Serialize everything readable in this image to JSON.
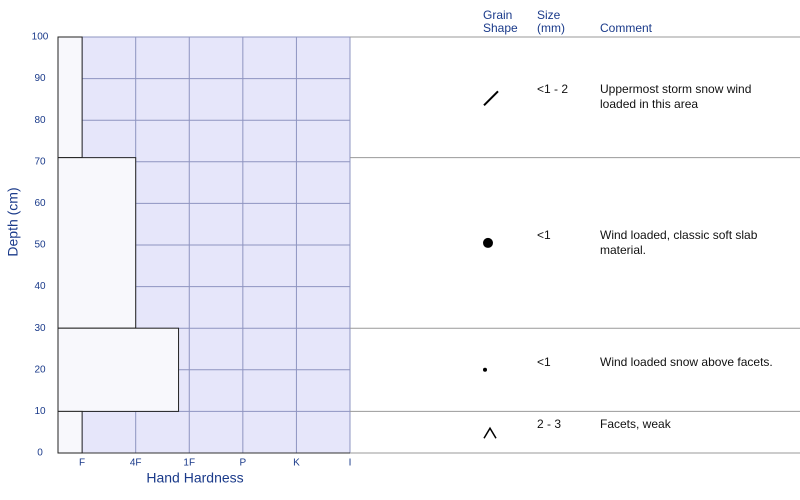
{
  "chart_data": {
    "type": "snow-profile",
    "ylabel": "Depth (cm)",
    "xlabel": "Hand Hardness",
    "ylim": [
      0,
      100
    ],
    "yticks": [
      0,
      10,
      20,
      30,
      40,
      50,
      60,
      70,
      80,
      90,
      100
    ],
    "xlim": [
      0.55,
      6
    ],
    "xticks": [
      {
        "value": 1,
        "label": "F"
      },
      {
        "value": 2,
        "label": "4F"
      },
      {
        "value": 3,
        "label": "1F"
      },
      {
        "value": 4,
        "label": "P"
      },
      {
        "value": 5,
        "label": "K"
      },
      {
        "value": 6,
        "label": "I"
      }
    ],
    "headers": [
      [
        "Grain",
        "Shape"
      ],
      [
        "Size",
        "(mm)"
      ],
      [
        "Comment"
      ]
    ],
    "layers": [
      {
        "top": 100,
        "bottom": 71,
        "hardness": 1,
        "size": "<1 - 2",
        "comment": "Uppermost storm snow wind loaded in this area"
      },
      {
        "top": 71,
        "bottom": 30,
        "hardness": 2,
        "size": "<1",
        "comment": "Wind loaded, classic soft slab material."
      },
      {
        "top": 30,
        "bottom": 10,
        "hardness": 2.8,
        "size": "<1",
        "comment": "Wind loaded snow above facets."
      },
      {
        "top": 10,
        "bottom": 0,
        "hardness": 1,
        "size": "2 - 3",
        "comment": "Facets, weak"
      }
    ]
  }
}
